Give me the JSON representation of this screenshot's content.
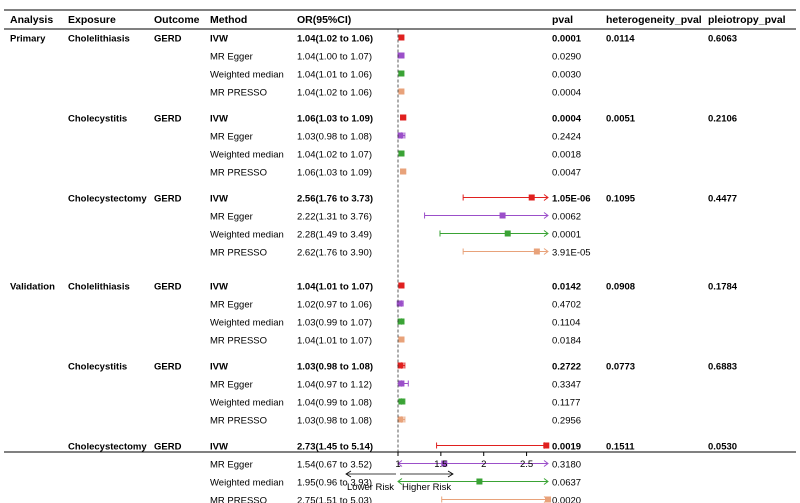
{
  "chart_data": {
    "type": "forest",
    "title": "",
    "columns": {
      "analysis": "Analysis",
      "exposure": "Exposure",
      "outcome": "Outcome",
      "method": "Method",
      "or": "OR(95%CI)",
      "pval": "pval",
      "heterogeneity": "heterogeneity_pval",
      "pleiotropy": "pleiotropy_pval"
    },
    "axis": {
      "ref_line": 1,
      "xlim": [
        1,
        2.75
      ],
      "ticks": [
        1,
        1.5,
        2,
        2.5
      ],
      "tick_labels": [
        "1",
        "1.5",
        "2",
        "2.5"
      ],
      "left_label": "Lower Risk",
      "right_label": "Higher Risk"
    },
    "method_colors": {
      "IVW": "#e0201f",
      "MR Egger": "#9b4fc9",
      "Weighted median": "#3aa335",
      "MR PRESSO": "#e8a27a"
    },
    "groups": [
      {
        "analysis": "Primary",
        "exposure": "Cholelithiasis",
        "outcome": "GERD",
        "heterogeneity_pval": "0.0114",
        "pleiotropy_pval": "0.6063",
        "rows": [
          {
            "method": "IVW",
            "or": 1.04,
            "lo": 1.02,
            "hi": 1.06,
            "or_text": "1.04(1.02 to 1.06)",
            "pval": "0.0001"
          },
          {
            "method": "MR Egger",
            "or": 1.04,
            "lo": 1.0,
            "hi": 1.07,
            "or_text": "1.04(1.00 to 1.07)",
            "pval": "0.0290"
          },
          {
            "method": "Weighted median",
            "or": 1.04,
            "lo": 1.01,
            "hi": 1.06,
            "or_text": "1.04(1.01 to 1.06)",
            "pval": "0.0030"
          },
          {
            "method": "MR PRESSO",
            "or": 1.04,
            "lo": 1.02,
            "hi": 1.06,
            "or_text": "1.04(1.02 to 1.06)",
            "pval": "0.0004"
          }
        ]
      },
      {
        "analysis": "",
        "exposure": "Cholecystitis",
        "outcome": "GERD",
        "heterogeneity_pval": "0.0051",
        "pleiotropy_pval": "0.2106",
        "rows": [
          {
            "method": "IVW",
            "or": 1.06,
            "lo": 1.03,
            "hi": 1.09,
            "or_text": "1.06(1.03 to 1.09)",
            "pval": "0.0004"
          },
          {
            "method": "MR Egger",
            "or": 1.03,
            "lo": 0.98,
            "hi": 1.08,
            "or_text": "1.03(0.98 to 1.08)",
            "pval": "0.2424"
          },
          {
            "method": "Weighted median",
            "or": 1.04,
            "lo": 1.02,
            "hi": 1.07,
            "or_text": "1.04(1.02 to 1.07)",
            "pval": "0.0018"
          },
          {
            "method": "MR PRESSO",
            "or": 1.06,
            "lo": 1.03,
            "hi": 1.09,
            "or_text": "1.06(1.03 to 1.09)",
            "pval": "0.0047"
          }
        ]
      },
      {
        "analysis": "",
        "exposure": "Cholecystectomy",
        "outcome": "GERD",
        "heterogeneity_pval": "0.1095",
        "pleiotropy_pval": "0.4477",
        "rows": [
          {
            "method": "IVW",
            "or": 2.56,
            "lo": 1.76,
            "hi": 3.73,
            "or_text": "2.56(1.76 to 3.73)",
            "pval": "1.05E-06"
          },
          {
            "method": "MR Egger",
            "or": 2.22,
            "lo": 1.31,
            "hi": 3.76,
            "or_text": "2.22(1.31 to 3.76)",
            "pval": "0.0062"
          },
          {
            "method": "Weighted median",
            "or": 2.28,
            "lo": 1.49,
            "hi": 3.49,
            "or_text": "2.28(1.49 to 3.49)",
            "pval": "0.0001"
          },
          {
            "method": "MR PRESSO",
            "or": 2.62,
            "lo": 1.76,
            "hi": 3.9,
            "or_text": "2.62(1.76 to 3.90)",
            "pval": "3.91E-05"
          }
        ]
      },
      {
        "analysis": "Validation",
        "exposure": "Cholelithiasis",
        "outcome": "GERD",
        "heterogeneity_pval": "0.0908",
        "pleiotropy_pval": "0.1784",
        "rows": [
          {
            "method": "IVW",
            "or": 1.04,
            "lo": 1.01,
            "hi": 1.07,
            "or_text": "1.04(1.01 to 1.07)",
            "pval": "0.0142"
          },
          {
            "method": "MR Egger",
            "or": 1.02,
            "lo": 0.97,
            "hi": 1.06,
            "or_text": "1.02(0.97 to 1.06)",
            "pval": "0.4702"
          },
          {
            "method": "Weighted median",
            "or": 1.03,
            "lo": 0.99,
            "hi": 1.07,
            "or_text": "1.03(0.99 to 1.07)",
            "pval": "0.1104"
          },
          {
            "method": "MR PRESSO",
            "or": 1.04,
            "lo": 1.01,
            "hi": 1.07,
            "or_text": "1.04(1.01 to 1.07)",
            "pval": "0.0184"
          }
        ]
      },
      {
        "analysis": "",
        "exposure": "Cholecystitis",
        "outcome": "GERD",
        "heterogeneity_pval": "0.0773",
        "pleiotropy_pval": "0.6883",
        "rows": [
          {
            "method": "IVW",
            "or": 1.03,
            "lo": 0.98,
            "hi": 1.08,
            "or_text": "1.03(0.98 to 1.08)",
            "pval": "0.2722"
          },
          {
            "method": "MR Egger",
            "or": 1.04,
            "lo": 0.97,
            "hi": 1.12,
            "or_text": "1.04(0.97 to 1.12)",
            "pval": "0.3347"
          },
          {
            "method": "Weighted median",
            "or": 1.04,
            "lo": 0.99,
            "hi": 1.08,
            "or_text": "1.04(0.99 to 1.08)",
            "pval": "0.1177"
          },
          {
            "method": "MR PRESSO",
            "or": 1.03,
            "lo": 0.98,
            "hi": 1.08,
            "or_text": "1.03(0.98 to 1.08)",
            "pval": "0.2956"
          }
        ]
      },
      {
        "analysis": "",
        "exposure": "Cholecystectomy",
        "outcome": "GERD",
        "heterogeneity_pval": "0.1511",
        "pleiotropy_pval": "0.0530",
        "rows": [
          {
            "method": "IVW",
            "or": 2.73,
            "lo": 1.45,
            "hi": 5.14,
            "or_text": "2.73(1.45 to 5.14)",
            "pval": "0.0019"
          },
          {
            "method": "MR Egger",
            "or": 1.54,
            "lo": 0.67,
            "hi": 3.52,
            "or_text": "1.54(0.67 to 3.52)",
            "pval": "0.3180"
          },
          {
            "method": "Weighted median",
            "or": 1.95,
            "lo": 0.96,
            "hi": 3.93,
            "or_text": "1.95(0.96 to 3.93)",
            "pval": "0.0637"
          },
          {
            "method": "MR PRESSO",
            "or": 2.75,
            "lo": 1.51,
            "hi": 5.03,
            "or_text": "2.75(1.51 to 5.03)",
            "pval": "0.0020"
          }
        ]
      }
    ]
  }
}
